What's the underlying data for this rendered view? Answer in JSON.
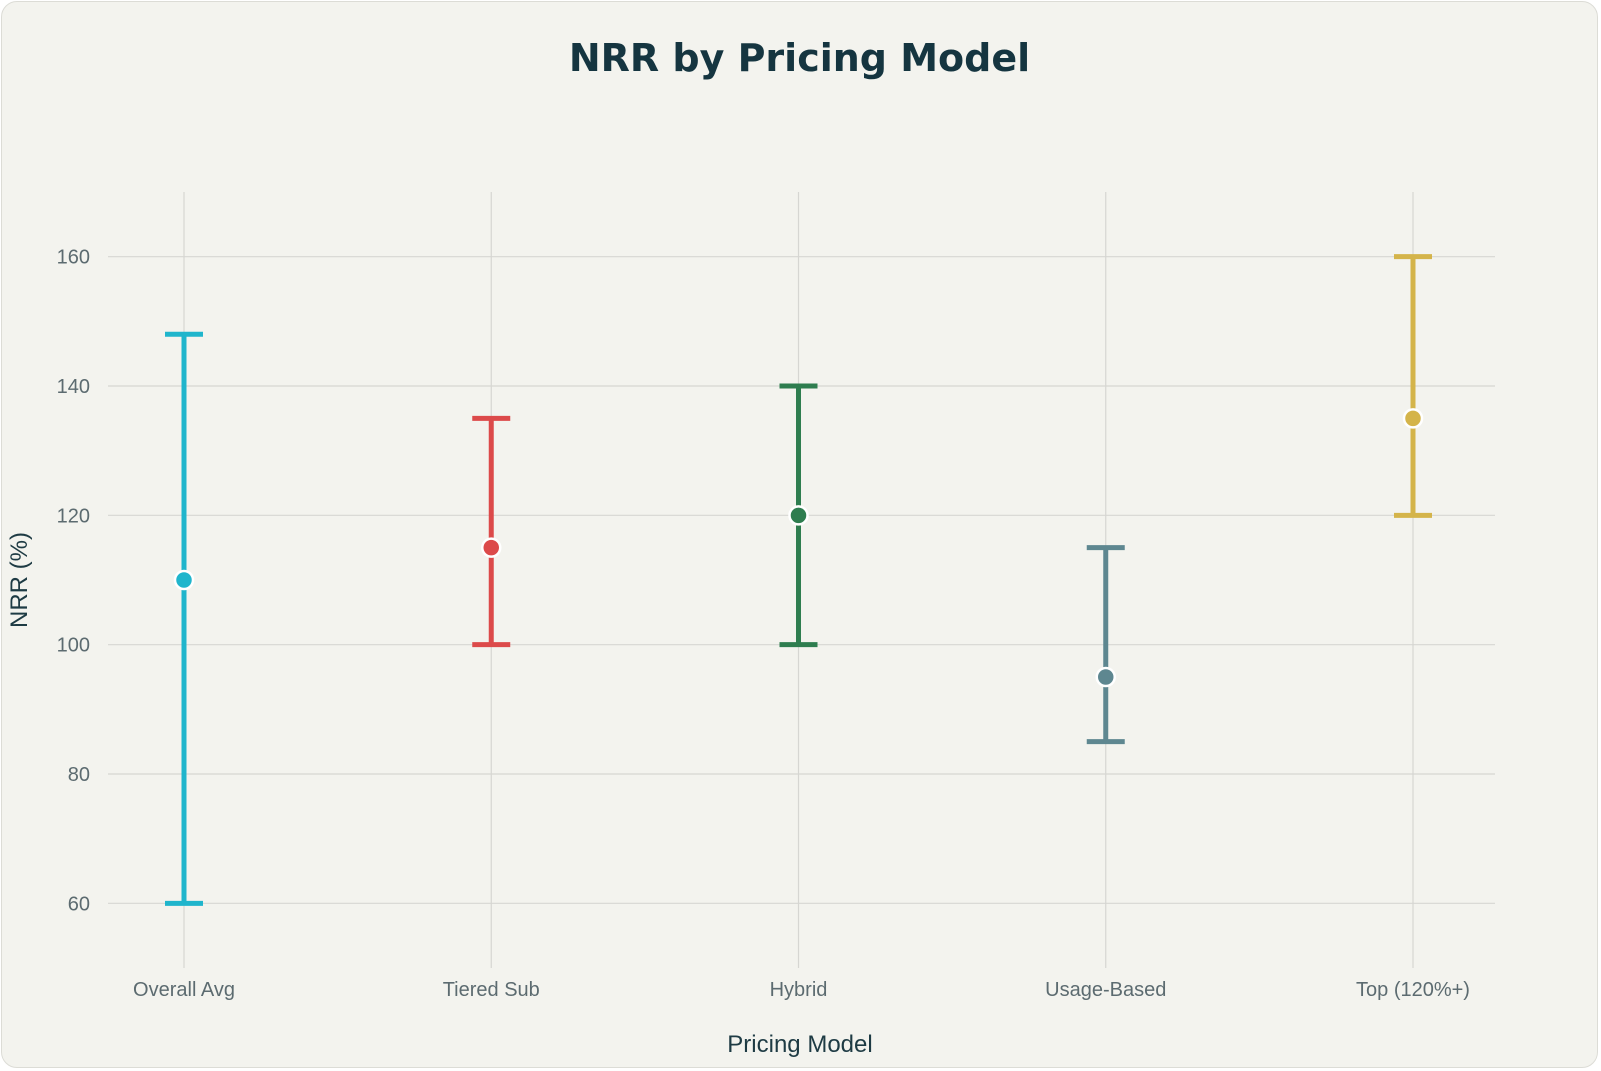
{
  "chart_data": {
    "type": "errorbar",
    "title": "NRR by Pricing Model",
    "xlabel": "Pricing Model",
    "ylabel": "NRR (%)",
    "ylim": [
      50,
      170
    ],
    "yticks": [
      60,
      80,
      100,
      120,
      140,
      160
    ],
    "grid": true,
    "categories": [
      "Overall Avg",
      "Tiered Sub",
      "Hybrid",
      "Usage-Based",
      "Top (120%+)"
    ],
    "series": [
      {
        "values": [
          110,
          115,
          120,
          95,
          135
        ],
        "low": [
          60,
          100,
          100,
          85,
          120
        ],
        "high": [
          148,
          135,
          140,
          115,
          160
        ]
      }
    ],
    "colors": [
      "#1fb5cc",
      "#dc4a4a",
      "#2e7d4f",
      "#5e8790",
      "#d4b44a"
    ]
  }
}
